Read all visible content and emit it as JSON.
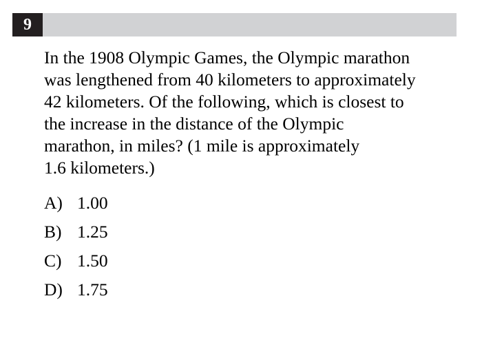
{
  "question": {
    "number": "9",
    "lines": [
      "In the 1908 Olympic Games, the Olympic marathon",
      "was lengthened from 40 kilometers to approximately",
      "42 kilometers.  Of the following, which is closest to",
      "the increase in the distance of the Olympic",
      "marathon, in miles? (1 mile is approximately",
      "1.6 kilometers.)"
    ]
  },
  "choices": [
    {
      "letter": "A)",
      "value": "1.00"
    },
    {
      "letter": "B)",
      "value": "1.25"
    },
    {
      "letter": "C)",
      "value": "1.50"
    },
    {
      "letter": "D)",
      "value": "1.75"
    }
  ]
}
